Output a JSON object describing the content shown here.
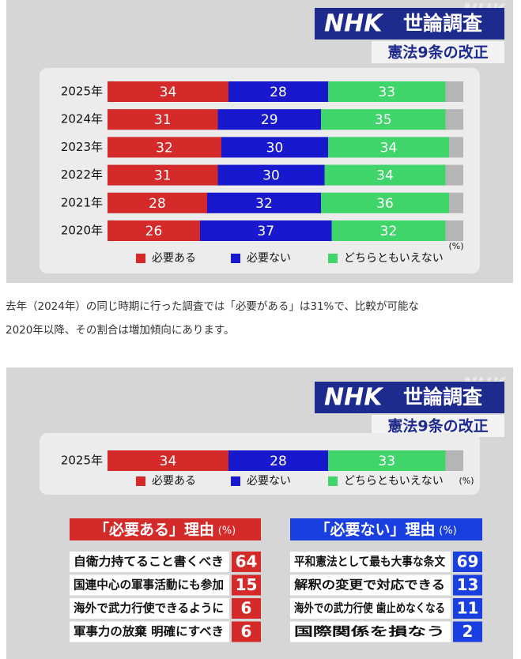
{
  "chart_data": [
    {
      "type": "stacked-bar",
      "brand": "NHK",
      "title": "世論調査",
      "subtitle": "憲法9条の改正",
      "watermark": "NHK",
      "unit": "(%)",
      "categories": [
        "2025年",
        "2024年",
        "2023年",
        "2022年",
        "2021年",
        "2020年"
      ],
      "series": [
        {
          "name": "必要ある",
          "color": "#d42a2a",
          "values": [
            34,
            31,
            32,
            31,
            28,
            26
          ]
        },
        {
          "name": "必要ない",
          "color": "#1818cf",
          "values": [
            28,
            29,
            30,
            30,
            32,
            37
          ]
        },
        {
          "name": "どちらともいえない",
          "color": "#3fd56b",
          "values": [
            33,
            35,
            34,
            34,
            36,
            32
          ]
        }
      ],
      "xlim": [
        0,
        100
      ],
      "remainder_color": "#b5b5b5"
    },
    {
      "type": "stacked-bar",
      "brand": "NHK",
      "title": "世論調査",
      "subtitle": "憲法9条の改正",
      "watermark": "NHK",
      "unit": "(%)",
      "categories": [
        "2025年"
      ],
      "series": [
        {
          "name": "必要ある",
          "color": "#d42a2a",
          "values": [
            34
          ]
        },
        {
          "name": "必要ない",
          "color": "#1818cf",
          "values": [
            28
          ]
        },
        {
          "name": "どちらともいえない",
          "color": "#3fd56b",
          "values": [
            33
          ]
        }
      ],
      "xlim": [
        0,
        100
      ],
      "remainder_color": "#b5b5b5"
    }
  ],
  "paragraph": [
    "去年（2024年）の同じ時期に行った調査では「必要がある」は31%で、比較が可能な",
    "2020年以降、その割合は増加傾向にあります。"
  ],
  "reasons": [
    {
      "title": "「必要ある」理由",
      "unit": "(%)",
      "color": "#d42a2a",
      "items": [
        {
          "label": "自衛力持てること書くべき",
          "value": 64
        },
        {
          "label": "国連中心の軍事活動にも参加",
          "value": 15
        },
        {
          "label": "海外で武力行使できるように",
          "value": 6
        },
        {
          "label": "軍事力の放棄 明確にすべき",
          "value": 6
        }
      ]
    },
    {
      "title": "「必要ない」理由",
      "unit": "(%)",
      "color": "#1a3fe0",
      "items": [
        {
          "label": "平和憲法として最も大事な条文",
          "value": 69
        },
        {
          "label": "解釈の変更で対応できる",
          "value": 13
        },
        {
          "label": "海外での武力行使 歯止めなくなる",
          "value": 11
        },
        {
          "label": "国際関係を損なう",
          "value": 2
        }
      ]
    }
  ]
}
